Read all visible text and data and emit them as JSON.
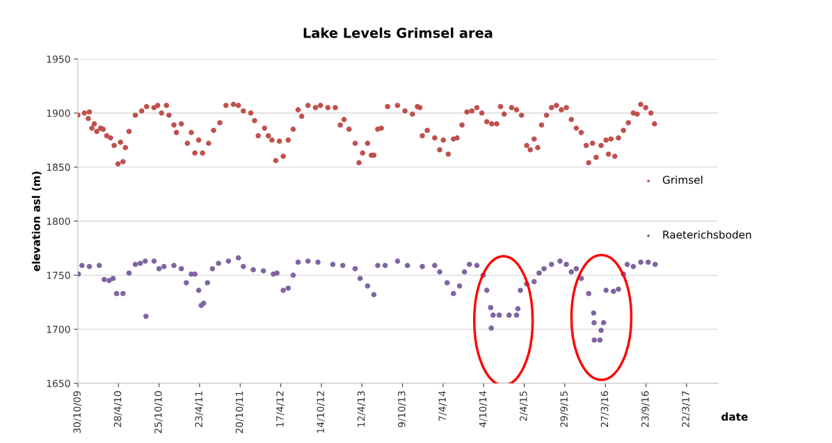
{
  "chart_data": {
    "type": "scatter",
    "title": "Lake Levels Grimsel area",
    "xlabel": "date",
    "ylabel": "elevation asl (m)",
    "xlim": [
      "2009-10-30",
      "2017-08-08"
    ],
    "ylim": [
      1650,
      1950
    ],
    "yticks": [
      1650,
      1700,
      1750,
      1800,
      1850,
      1900,
      1950
    ],
    "xticks": [
      {
        "value": "2009-10-30",
        "label": "30/10/09"
      },
      {
        "value": "2010-04-28",
        "label": "28/4/10"
      },
      {
        "value": "2010-10-25",
        "label": "25/10/10"
      },
      {
        "value": "2011-04-23",
        "label": "23/4/11"
      },
      {
        "value": "2011-10-20",
        "label": "20/10/11"
      },
      {
        "value": "2012-04-17",
        "label": "17/4/12"
      },
      {
        "value": "2012-10-14",
        "label": "14/10/12"
      },
      {
        "value": "2013-04-12",
        "label": "12/4/13"
      },
      {
        "value": "2013-10-09",
        "label": "9/10/13"
      },
      {
        "value": "2014-04-07",
        "label": "7/4/14"
      },
      {
        "value": "2014-10-04",
        "label": "4/10/14"
      },
      {
        "value": "2015-04-02",
        "label": "2/4/15"
      },
      {
        "value": "2015-09-29",
        "label": "29/9/15"
      },
      {
        "value": "2016-03-27",
        "label": "27/3/16"
      },
      {
        "value": "2016-09-23",
        "label": "23/9/16"
      },
      {
        "value": "2017-03-22",
        "label": "22/3/17"
      }
    ],
    "grid": "y",
    "legend": "right",
    "marker": "circle",
    "series": [
      {
        "name": "Grimsel",
        "color": "#c0504d",
        "x": [
          "2009-10-30",
          "2009-11-28",
          "2009-12-15",
          "2009-12-20",
          "2009-12-31",
          "2010-01-11",
          "2010-01-22",
          "2010-02-08",
          "2010-02-19",
          "2010-03-07",
          "2010-03-24",
          "2010-04-09",
          "2010-04-26",
          "2010-05-07",
          "2010-05-18",
          "2010-05-29",
          "2010-06-14",
          "2010-07-12",
          "2010-08-09",
          "2010-08-31",
          "2010-10-03",
          "2010-10-19",
          "2010-11-05",
          "2010-11-27",
          "2010-12-08",
          "2010-12-30",
          "2011-01-10",
          "2011-02-01",
          "2011-02-28",
          "2011-03-17",
          "2011-04-02",
          "2011-04-19",
          "2011-05-06",
          "2011-06-02",
          "2011-06-24",
          "2011-07-22",
          "2011-08-18",
          "2011-09-20",
          "2011-10-12",
          "2011-11-03",
          "2011-12-06",
          "2011-12-23",
          "2012-01-08",
          "2012-02-05",
          "2012-02-22",
          "2012-03-09",
          "2012-03-26",
          "2012-04-11",
          "2012-04-28",
          "2012-05-20",
          "2012-06-11",
          "2012-07-03",
          "2012-07-19",
          "2012-08-16",
          "2012-09-18",
          "2012-10-10",
          "2012-11-12",
          "2012-12-15",
          "2013-01-06",
          "2013-01-23",
          "2013-02-14",
          "2013-03-13",
          "2013-03-30",
          "2013-04-15",
          "2013-05-07",
          "2013-05-24",
          "2013-06-04",
          "2013-06-21",
          "2013-07-07",
          "2013-08-04",
          "2013-09-17",
          "2013-10-20",
          "2013-11-22",
          "2013-12-14",
          "2013-12-25",
          "2014-01-05",
          "2014-01-27",
          "2014-03-01",
          "2014-03-23",
          "2014-04-08",
          "2014-04-30",
          "2014-05-23",
          "2014-06-08",
          "2014-06-30",
          "2014-07-22",
          "2014-08-13",
          "2014-09-04",
          "2014-09-26",
          "2014-10-18",
          "2014-11-09",
          "2014-12-01",
          "2014-12-18",
          "2015-01-03",
          "2015-02-05",
          "2015-02-27",
          "2015-03-21",
          "2015-04-13",
          "2015-04-29",
          "2015-05-16",
          "2015-06-01",
          "2015-06-18",
          "2015-07-10",
          "2015-08-01",
          "2015-08-23",
          "2015-09-14",
          "2015-10-06",
          "2015-10-28",
          "2015-11-19",
          "2015-12-11",
          "2016-01-02",
          "2016-01-13",
          "2016-01-30",
          "2016-02-15",
          "2016-03-08",
          "2016-03-30",
          "2016-04-10",
          "2016-04-21",
          "2016-05-08",
          "2016-05-24",
          "2016-06-15",
          "2016-07-07",
          "2016-07-29",
          "2016-08-15",
          "2016-08-31",
          "2016-09-22",
          "2016-10-15",
          "2016-10-31"
        ],
        "values": [
          1898,
          1900,
          1895,
          1901,
          1886,
          1890,
          1883,
          1886,
          1885,
          1879,
          1877,
          1870,
          1853,
          1873,
          1855,
          1868,
          1883,
          1898,
          1902,
          1906,
          1905,
          1907,
          1900,
          1907,
          1898,
          1889,
          1882,
          1890,
          1872,
          1882,
          1863,
          1875,
          1863,
          1872,
          1884,
          1891,
          1907,
          1908,
          1907,
          1902,
          1900,
          1893,
          1879,
          1886,
          1879,
          1875,
          1856,
          1874,
          1860,
          1875,
          1885,
          1903,
          1897,
          1907,
          1905,
          1907,
          1905,
          1905,
          1889,
          1894,
          1885,
          1872,
          1854,
          1863,
          1872,
          1861,
          1861,
          1885,
          1886,
          1906,
          1907,
          1902,
          1899,
          1906,
          1905,
          1879,
          1884,
          1877,
          1866,
          1875,
          1862,
          1876,
          1877,
          1889,
          1901,
          1902,
          1905,
          1900,
          1892,
          1890,
          1890,
          1906,
          1899,
          1905,
          1903,
          1898,
          1870,
          1866,
          1876,
          1868,
          1889,
          1898,
          1905,
          1907,
          1903,
          1905,
          1894,
          1886,
          1882,
          1870,
          1854,
          1872,
          1859,
          1870,
          1875,
          1862,
          1876,
          1860,
          1877,
          1884,
          1891,
          1900,
          1899,
          1908,
          1905,
          1900,
          1890
        ]
      },
      {
        "name": "Raeterichsboden",
        "color": "#8064a2",
        "x": [
          "2009-11-01",
          "2009-11-17",
          "2009-12-20",
          "2010-02-02",
          "2010-02-24",
          "2010-03-18",
          "2010-04-04",
          "2010-04-20",
          "2010-05-18",
          "2010-06-14",
          "2010-07-12",
          "2010-08-03",
          "2010-08-25",
          "2010-08-28",
          "2010-10-03",
          "2010-10-25",
          "2010-11-16",
          "2010-12-30",
          "2011-02-01",
          "2011-02-23",
          "2011-03-17",
          "2011-04-02",
          "2011-04-19",
          "2011-04-30",
          "2011-05-11",
          "2011-05-28",
          "2011-06-19",
          "2011-07-16",
          "2011-08-29",
          "2011-10-12",
          "2011-11-03",
          "2011-12-17",
          "2012-01-31",
          "2012-03-15",
          "2012-03-31",
          "2012-04-28",
          "2012-05-20",
          "2012-06-11",
          "2012-07-03",
          "2012-08-16",
          "2012-09-29",
          "2012-12-04",
          "2013-01-17",
          "2013-03-13",
          "2013-04-04",
          "2013-05-07",
          "2013-06-04",
          "2013-06-21",
          "2013-07-24",
          "2013-09-17",
          "2013-10-31",
          "2014-01-05",
          "2014-03-01",
          "2014-03-23",
          "2014-04-25",
          "2014-05-23",
          "2014-06-19",
          "2014-07-11",
          "2014-08-02",
          "2014-09-04",
          "2014-10-02",
          "2014-10-18",
          "2014-11-04",
          "2014-11-07",
          "2014-11-15",
          "2014-12-12",
          "2015-01-25",
          "2015-02-27",
          "2015-03-05",
          "2015-03-16",
          "2015-04-13",
          "2015-05-16",
          "2015-06-07",
          "2015-06-29",
          "2015-08-01",
          "2015-09-08",
          "2015-10-06",
          "2015-10-28",
          "2015-11-19",
          "2015-12-11",
          "2016-01-13",
          "2016-02-04",
          "2016-02-06",
          "2016-02-07",
          "2016-03-03",
          "2016-03-08",
          "2016-03-19",
          "2016-03-30",
          "2016-05-02",
          "2016-05-24",
          "2016-06-15",
          "2016-07-02",
          "2016-07-29",
          "2016-08-31",
          "2016-10-03",
          "2016-11-03"
        ],
        "values": [
          1751,
          1759,
          1758,
          1759,
          1746,
          1745,
          1747,
          1733,
          1733,
          1752,
          1760,
          1761,
          1763,
          1712,
          1763,
          1756,
          1758,
          1759,
          1756,
          1743,
          1751,
          1751,
          1736,
          1722,
          1724,
          1743,
          1756,
          1761,
          1763,
          1766,
          1758,
          1755,
          1754,
          1751,
          1752,
          1736,
          1738,
          1750,
          1762,
          1763,
          1762,
          1760,
          1759,
          1756,
          1747,
          1740,
          1732,
          1759,
          1759,
          1763,
          1759,
          1758,
          1759,
          1753,
          1743,
          1733,
          1740,
          1753,
          1760,
          1759,
          1750,
          1736,
          1720,
          1701,
          1713,
          1713,
          1713,
          1713,
          1719,
          1736,
          1742,
          1744,
          1752,
          1756,
          1760,
          1763,
          1760,
          1753,
          1756,
          1747,
          1733,
          1715,
          1706,
          1690,
          1690,
          1699,
          1706,
          1736,
          1735,
          1737,
          1751,
          1760,
          1758,
          1762,
          1762,
          1760
        ]
      }
    ]
  }
}
